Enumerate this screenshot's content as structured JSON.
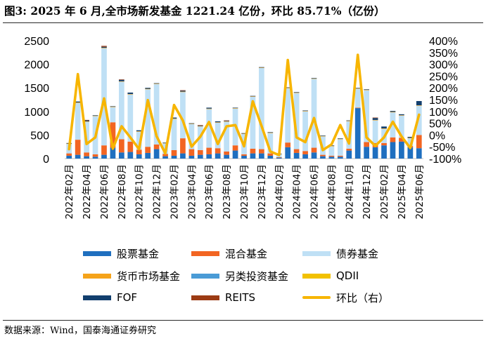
{
  "header": {
    "title": "图3:  2025 年 6 月,全市场新发基金 1221.24 亿份，环比 85.71%（亿份）"
  },
  "footer": {
    "source": "数据来源：Wind，国泰海通证券研究"
  },
  "colors": {
    "stock": "#1f6fbf",
    "mixed": "#f26522",
    "bond": "#bfe0f5",
    "money": "#f5a31a",
    "alt": "#4a9bd6",
    "qdii": "#f2c100",
    "fof": "#123f6e",
    "reits": "#9c3b14",
    "mom": "#f7b500"
  },
  "chart_data": {
    "type": "bar",
    "stacked": true,
    "secondary_axis": true,
    "categories": [
      "2022年02月",
      "2022年03月",
      "2022年04月",
      "2022年05月",
      "2022年06月",
      "2022年07月",
      "2022年08月",
      "2022年09月",
      "2022年10月",
      "2022年11月",
      "2022年12月",
      "2023年01月",
      "2023年02月",
      "2023年03月",
      "2023年04月",
      "2023年05月",
      "2023年06月",
      "2023年07月",
      "2023年08月",
      "2023年09月",
      "2023年10月",
      "2023年11月",
      "2023年12月",
      "2024年01月",
      "2024年02月",
      "2024年03月",
      "2024年04月",
      "2024年05月",
      "2024年06月",
      "2024年07月",
      "2024年08月",
      "2024年09月",
      "2024年10月",
      "2024年11月",
      "2024年12月",
      "2025年01月",
      "2025年02月",
      "2025年03月",
      "2025年04月",
      "2025年05月",
      "2025年06月"
    ],
    "x_tick_labels": [
      "2022年02月",
      "2022年04月",
      "2022年06月",
      "2022年08月",
      "2022年10月",
      "2022年12月",
      "2023年02月",
      "2023年04月",
      "2023年06月",
      "2023年08月",
      "2023年10月",
      "2023年12月",
      "2024年02月",
      "2024年04月",
      "2024年06月",
      "2024年08月",
      "2024年10月",
      "2024年12月",
      "2025年02月",
      "2025年04月",
      "2025年06月"
    ],
    "y_left": {
      "min": 0,
      "max": 2500,
      "ticks": [
        "0",
        "500",
        "1000",
        "1500",
        "2000",
        "2500"
      ]
    },
    "y_right": {
      "min": -100,
      "max": 400,
      "ticks": [
        "-100%",
        "-50%",
        "0%",
        "50%",
        "100%",
        "150%",
        "200%",
        "250%",
        "300%",
        "350%",
        "400%"
      ]
    },
    "series": [
      {
        "name": "股票基金",
        "key": "stock",
        "values": [
          60,
          80,
          50,
          40,
          80,
          230,
          130,
          140,
          90,
          120,
          200,
          50,
          60,
          110,
          60,
          80,
          90,
          110,
          80,
          170,
          60,
          110,
          110,
          60,
          20,
          240,
          120,
          90,
          130,
          50,
          40,
          40,
          170,
          1070,
          250,
          240,
          280,
          350,
          360,
          240,
          220
        ]
      },
      {
        "name": "混合基金",
        "key": "mixed",
        "values": [
          50,
          320,
          80,
          50,
          200,
          540,
          280,
          220,
          100,
          130,
          100,
          50,
          120,
          320,
          140,
          100,
          140,
          110,
          70,
          110,
          30,
          100,
          90,
          50,
          10,
          100,
          80,
          70,
          100,
          30,
          20,
          20,
          40,
          10,
          100,
          90,
          50,
          100,
          80,
          30,
          280
        ]
      },
      {
        "name": "债券基金",
        "key": "bond",
        "values": [
          200,
          780,
          650,
          810,
          2060,
          320,
          1220,
          1000,
          380,
          1220,
          1280,
          220,
          660,
          980,
          530,
          500,
          820,
          540,
          630,
          780,
          430,
          1100,
          1720,
          430,
          60,
          1150,
          1190,
          840,
          1460,
          390,
          200,
          350,
          580,
          400,
          1100,
          480,
          300,
          530,
          470,
          160,
          620
        ]
      },
      {
        "name": "货币市场基金",
        "key": "money",
        "values": [
          10,
          10,
          10,
          10,
          10,
          10,
          10,
          10,
          10,
          10,
          10,
          10,
          10,
          10,
          10,
          10,
          10,
          10,
          10,
          10,
          10,
          10,
          10,
          10,
          10,
          10,
          10,
          10,
          10,
          10,
          10,
          10,
          10,
          10,
          10,
          10,
          10,
          10,
          10,
          10,
          10
        ]
      },
      {
        "name": "另类投资基金",
        "key": "alt",
        "values": [
          0,
          0,
          0,
          0,
          0,
          0,
          0,
          0,
          0,
          0,
          0,
          0,
          0,
          0,
          0,
          0,
          0,
          0,
          0,
          0,
          0,
          0,
          0,
          0,
          0,
          0,
          0,
          0,
          0,
          0,
          0,
          0,
          0,
          0,
          0,
          0,
          0,
          0,
          0,
          0,
          0
        ]
      },
      {
        "name": "QDII",
        "key": "qdii",
        "values": [
          0,
          0,
          0,
          0,
          0,
          0,
          0,
          0,
          0,
          0,
          0,
          0,
          0,
          0,
          0,
          0,
          0,
          0,
          0,
          0,
          0,
          0,
          0,
          0,
          0,
          0,
          0,
          0,
          0,
          0,
          0,
          0,
          0,
          0,
          0,
          0,
          0,
          0,
          0,
          0,
          0
        ]
      },
      {
        "name": "FOF",
        "key": "fof",
        "values": [
          10,
          20,
          20,
          10,
          20,
          10,
          30,
          30,
          20,
          20,
          10,
          10,
          20,
          20,
          10,
          10,
          20,
          20,
          10,
          10,
          10,
          10,
          10,
          10,
          5,
          10,
          10,
          10,
          10,
          10,
          10,
          10,
          10,
          10,
          10,
          40,
          40,
          20,
          20,
          20,
          90
        ]
      },
      {
        "name": "REITS",
        "key": "reits",
        "values": [
          0,
          0,
          10,
          0,
          20,
          0,
          10,
          0,
          0,
          0,
          0,
          0,
          0,
          10,
          0,
          10,
          0,
          0,
          10,
          0,
          0,
          0,
          0,
          0,
          0,
          0,
          0,
          0,
          0,
          0,
          0,
          0,
          0,
          0,
          0,
          10,
          0,
          0,
          0,
          0,
          0
        ]
      },
      {
        "name": "环比（右）",
        "key": "mom",
        "type": "line",
        "axis": "right",
        "values": [
          -60,
          258,
          -38,
          -10,
          155,
          -58,
          37,
          -10,
          -60,
          148,
          -5,
          -78,
          127,
          62,
          -49,
          -7,
          55,
          -38,
          37,
          42,
          -48,
          143,
          38,
          -70,
          -85,
          318,
          -10,
          -30,
          72,
          -64,
          -40,
          42,
          -36,
          340,
          -10,
          -46,
          -10,
          56,
          -6,
          -55,
          86
        ]
      }
    ],
    "legend_order": [
      "stock",
      "mixed",
      "bond",
      "money",
      "alt",
      "qdii",
      "fof",
      "reits",
      "mom"
    ]
  }
}
